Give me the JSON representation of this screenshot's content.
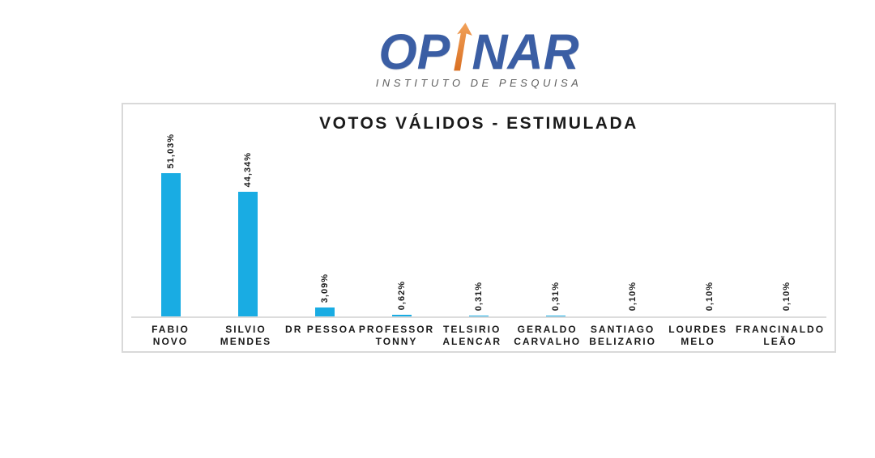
{
  "logo": {
    "brand_prefix": "OP",
    "brand_suffix": "NAR",
    "arrow_icon": "up-arrow-icon",
    "subtitle": "INSTITUTO DE PESQUISA",
    "brand_color": "#3B5EA4",
    "arrow_color_top": "#F2A25A",
    "arrow_color_bottom": "#D96F22",
    "subtitle_color": "#5E5E5E"
  },
  "chart_data": {
    "type": "bar",
    "title": "VOTOS VÁLIDOS - ESTIMULADA",
    "categories": [
      "FABIO NOVO",
      "SILVIO MENDES",
      "DR PESSOA",
      "PROFESSOR TONNY",
      "TELSIRIO ALENCAR",
      "GERALDO CARVALHO",
      "SANTIAGO BELIZARIO",
      "LOURDES MELO",
      "FRANCINALDO LEÃO"
    ],
    "category_labels_display": [
      "FABIO NOVO",
      "SILVIO\nMENDES",
      "DR PESSOA",
      "PROFESSOR\nTONNY",
      "TELSIRIO\nALENCAR",
      "GERALDO\nCARVALHO",
      "SANTIAGO\nBELIZARIO",
      "LOURDES\nMELO",
      "FRANCINALDO\nLEÃO"
    ],
    "values": [
      51.03,
      44.34,
      3.09,
      0.62,
      0.31,
      0.31,
      0.1,
      0.1,
      0.1
    ],
    "value_labels": [
      "51,03%",
      "44,34%",
      "3,09%",
      "0,62%",
      "0,31%",
      "0,31%",
      "0,10%",
      "0,10%",
      "0,10%"
    ],
    "xlabel": "",
    "ylabel": "",
    "ylim": [
      0,
      55
    ],
    "grid": false,
    "legend": false,
    "value_label_rotation": -90,
    "bar_color": "#19ACE3",
    "axis_color": "#DCDCDC",
    "panel_border_color": "#D9D9D9",
    "text_color": "#1A1A1A"
  }
}
